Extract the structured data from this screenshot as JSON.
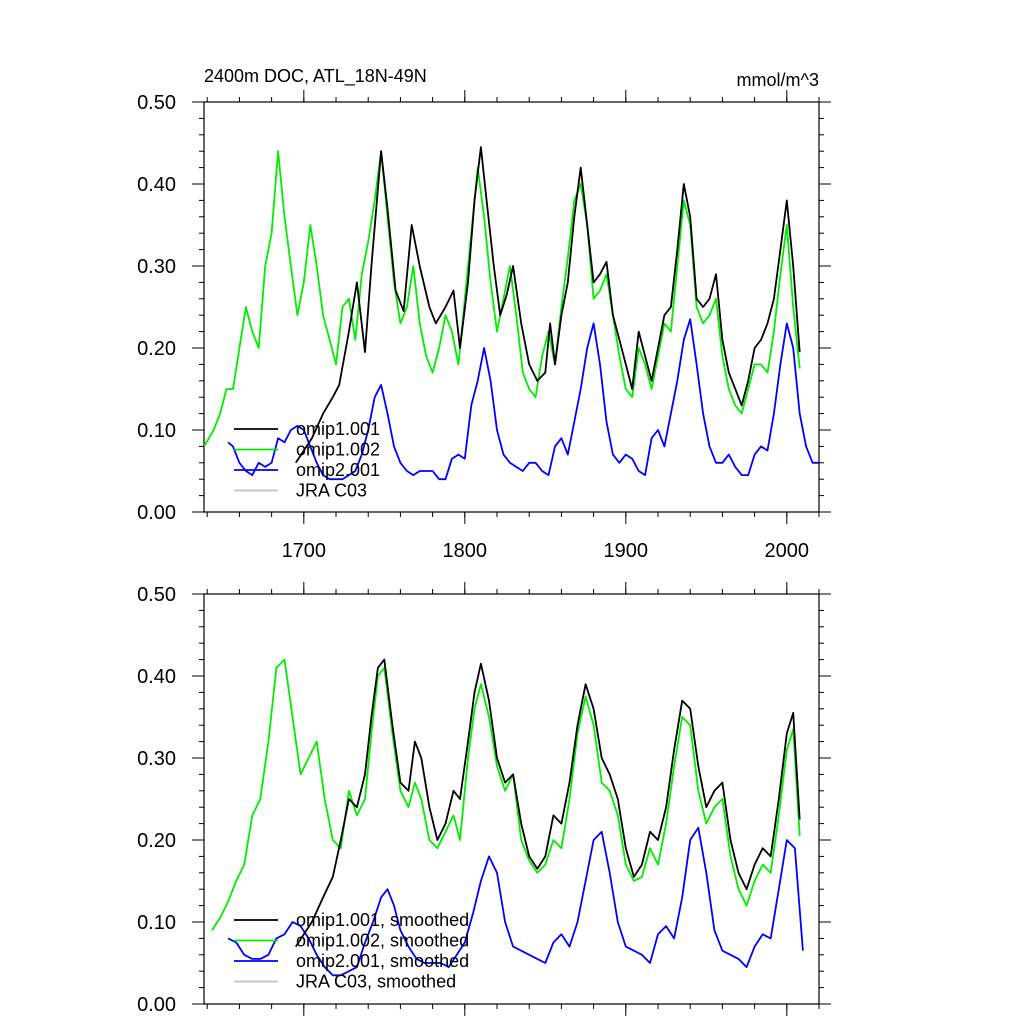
{
  "title": "2400m DOC, ATL_18N-49N",
  "units": "mmol/m^3",
  "colors": {
    "omip1_001": "#000000",
    "omip1_002": "#00ee00",
    "omip2_001": "#0000ff",
    "jra_c03": "#c0c0c0"
  },
  "chart_data": [
    {
      "type": "line",
      "panel": "top",
      "title": "2400m DOC, ATL_18N-49N",
      "units": "mmol/m^3",
      "xlim": [
        1638,
        2020
      ],
      "ylim": [
        0,
        0.5
      ],
      "xticks": [
        1700,
        1800,
        1900,
        2000
      ],
      "xtick_labels": [
        "1700",
        "1800",
        "1900",
        "2000"
      ],
      "yticks": [
        0,
        0.1,
        0.2,
        0.3,
        0.4,
        0.5
      ],
      "ytick_labels": [
        "0.00",
        "0.10",
        "0.20",
        "0.30",
        "0.40",
        "0.50"
      ],
      "legend_position": "bottom-left",
      "series": [
        {
          "name": "omip1.001",
          "color": "#000000",
          "x": [
            1695,
            1705,
            1712,
            1718,
            1722,
            1728,
            1733,
            1738,
            1742,
            1748,
            1752,
            1757,
            1762,
            1767,
            1772,
            1778,
            1782,
            1788,
            1793,
            1797,
            1802,
            1806,
            1810,
            1813,
            1818,
            1822,
            1826,
            1830,
            1835,
            1840,
            1845,
            1850,
            1853,
            1856,
            1860,
            1864,
            1868,
            1872,
            1876,
            1880,
            1884,
            1888,
            1892,
            1896,
            1900,
            1904,
            1908,
            1912,
            1916,
            1920,
            1924,
            1928,
            1932,
            1936,
            1940,
            1944,
            1948,
            1952,
            1956,
            1960,
            1964,
            1968,
            1972,
            1976,
            1980,
            1984,
            1988,
            1992,
            1996,
            2000,
            2004,
            2008
          ],
          "y": [
            0.06,
            0.09,
            0.12,
            0.14,
            0.155,
            0.22,
            0.28,
            0.195,
            0.3,
            0.44,
            0.37,
            0.27,
            0.245,
            0.35,
            0.3,
            0.25,
            0.23,
            0.25,
            0.27,
            0.2,
            0.28,
            0.38,
            0.445,
            0.39,
            0.3,
            0.24,
            0.265,
            0.3,
            0.23,
            0.18,
            0.16,
            0.17,
            0.23,
            0.18,
            0.24,
            0.28,
            0.36,
            0.42,
            0.35,
            0.28,
            0.29,
            0.305,
            0.24,
            0.21,
            0.18,
            0.15,
            0.22,
            0.19,
            0.16,
            0.2,
            0.24,
            0.25,
            0.32,
            0.4,
            0.36,
            0.26,
            0.25,
            0.26,
            0.29,
            0.21,
            0.17,
            0.15,
            0.13,
            0.16,
            0.2,
            0.21,
            0.23,
            0.26,
            0.32,
            0.38,
            0.3,
            0.195
          ]
        },
        {
          "name": "omip1.002",
          "color": "#00ee00",
          "x": [
            1638,
            1644,
            1648,
            1652,
            1656,
            1660,
            1664,
            1668,
            1672,
            1676,
            1680,
            1684,
            1688,
            1692,
            1696,
            1700,
            1704,
            1708,
            1712,
            1716,
            1720,
            1724,
            1728,
            1732,
            1736,
            1740,
            1744,
            1748,
            1752,
            1756,
            1760,
            1764,
            1768,
            1772,
            1776,
            1780,
            1784,
            1788,
            1792,
            1796,
            1800,
            1804,
            1808,
            1812,
            1816,
            1820,
            1824,
            1828,
            1832,
            1836,
            1840,
            1844,
            1848,
            1852,
            1856,
            1860,
            1864,
            1868,
            1872,
            1876,
            1880,
            1884,
            1888,
            1892,
            1896,
            1900,
            1904,
            1908,
            1912,
            1916,
            1920,
            1924,
            1928,
            1932,
            1936,
            1940,
            1944,
            1948,
            1952,
            1956,
            1960,
            1964,
            1968,
            1972,
            1976,
            1980,
            1984,
            1988,
            1992,
            1996,
            2000,
            2004,
            2008
          ],
          "y": [
            0.08,
            0.1,
            0.12,
            0.15,
            0.15,
            0.2,
            0.25,
            0.22,
            0.2,
            0.3,
            0.34,
            0.44,
            0.36,
            0.3,
            0.24,
            0.28,
            0.35,
            0.3,
            0.24,
            0.21,
            0.18,
            0.25,
            0.26,
            0.21,
            0.29,
            0.33,
            0.38,
            0.44,
            0.36,
            0.28,
            0.23,
            0.25,
            0.3,
            0.23,
            0.19,
            0.17,
            0.2,
            0.24,
            0.22,
            0.18,
            0.26,
            0.34,
            0.42,
            0.36,
            0.28,
            0.22,
            0.26,
            0.3,
            0.24,
            0.17,
            0.15,
            0.14,
            0.19,
            0.22,
            0.18,
            0.25,
            0.31,
            0.38,
            0.4,
            0.35,
            0.26,
            0.27,
            0.29,
            0.24,
            0.19,
            0.15,
            0.14,
            0.2,
            0.18,
            0.15,
            0.19,
            0.23,
            0.22,
            0.3,
            0.38,
            0.35,
            0.25,
            0.23,
            0.24,
            0.26,
            0.19,
            0.15,
            0.13,
            0.12,
            0.15,
            0.18,
            0.18,
            0.17,
            0.22,
            0.29,
            0.35,
            0.25,
            0.175
          ]
        },
        {
          "name": "omip2.001",
          "color": "#0000ff",
          "x": [
            1653,
            1656,
            1660,
            1664,
            1668,
            1672,
            1676,
            1680,
            1684,
            1688,
            1692,
            1696,
            1700,
            1704,
            1708,
            1712,
            1716,
            1720,
            1724,
            1728,
            1732,
            1736,
            1740,
            1744,
            1748,
            1752,
            1756,
            1760,
            1764,
            1768,
            1772,
            1776,
            1780,
            1784,
            1788,
            1792,
            1796,
            1800,
            1804,
            1808,
            1812,
            1816,
            1820,
            1824,
            1828,
            1832,
            1836,
            1840,
            1844,
            1848,
            1852,
            1856,
            1860,
            1864,
            1868,
            1872,
            1876,
            1880,
            1884,
            1888,
            1892,
            1896,
            1900,
            1904,
            1908,
            1912,
            1916,
            1920,
            1924,
            1928,
            1932,
            1936,
            1940,
            1944,
            1948,
            1952,
            1956,
            1960,
            1964,
            1968,
            1972,
            1976,
            1980,
            1984,
            1988,
            1992,
            1996,
            2000,
            2004,
            2008,
            2012,
            2016,
            2020
          ],
          "y": [
            0.085,
            0.08,
            0.06,
            0.05,
            0.045,
            0.06,
            0.055,
            0.06,
            0.09,
            0.085,
            0.1,
            0.105,
            0.1,
            0.08,
            0.06,
            0.045,
            0.04,
            0.04,
            0.04,
            0.045,
            0.05,
            0.07,
            0.1,
            0.14,
            0.155,
            0.12,
            0.08,
            0.06,
            0.05,
            0.045,
            0.05,
            0.05,
            0.05,
            0.04,
            0.04,
            0.065,
            0.07,
            0.065,
            0.13,
            0.16,
            0.2,
            0.16,
            0.1,
            0.07,
            0.06,
            0.055,
            0.05,
            0.06,
            0.06,
            0.05,
            0.045,
            0.08,
            0.09,
            0.07,
            0.11,
            0.15,
            0.2,
            0.23,
            0.18,
            0.11,
            0.07,
            0.06,
            0.07,
            0.065,
            0.05,
            0.045,
            0.09,
            0.1,
            0.08,
            0.12,
            0.16,
            0.21,
            0.235,
            0.18,
            0.12,
            0.08,
            0.06,
            0.06,
            0.07,
            0.055,
            0.045,
            0.045,
            0.07,
            0.08,
            0.075,
            0.12,
            0.18,
            0.23,
            0.2,
            0.12,
            0.08,
            0.06,
            0.06
          ]
        },
        {
          "name": "JRA C03",
          "color": "#c0c0c0",
          "x": [],
          "y": []
        }
      ]
    },
    {
      "type": "line",
      "panel": "bottom",
      "xlim": [
        1638,
        2020
      ],
      "ylim": [
        0,
        0.5
      ],
      "xticks": [
        1700,
        1800,
        1900,
        2000
      ],
      "yticks": [
        0,
        0.1,
        0.2,
        0.3,
        0.4,
        0.5
      ],
      "ytick_labels": [
        "0.00",
        "0.10",
        "0.20",
        "0.30",
        "0.40",
        "0.50"
      ],
      "legend_position": "bottom-left",
      "series": [
        {
          "name": "omip1.001, smoothed",
          "color": "#000000",
          "x": [
            1695,
            1705,
            1712,
            1718,
            1723,
            1728,
            1733,
            1738,
            1742,
            1746,
            1750,
            1755,
            1760,
            1765,
            1769,
            1773,
            1778,
            1783,
            1788,
            1793,
            1797,
            1802,
            1806,
            1810,
            1815,
            1820,
            1825,
            1830,
            1835,
            1840,
            1845,
            1850,
            1855,
            1860,
            1865,
            1870,
            1875,
            1880,
            1885,
            1890,
            1895,
            1900,
            1905,
            1910,
            1915,
            1920,
            1925,
            1930,
            1935,
            1940,
            1945,
            1950,
            1955,
            1960,
            1965,
            1970,
            1975,
            1980,
            1985,
            1990,
            1995,
            2000,
            2004,
            2008
          ],
          "y": [
            0.07,
            0.1,
            0.13,
            0.155,
            0.2,
            0.25,
            0.24,
            0.28,
            0.35,
            0.41,
            0.42,
            0.34,
            0.27,
            0.26,
            0.32,
            0.3,
            0.24,
            0.2,
            0.22,
            0.26,
            0.25,
            0.32,
            0.38,
            0.415,
            0.37,
            0.3,
            0.27,
            0.28,
            0.22,
            0.18,
            0.165,
            0.18,
            0.23,
            0.22,
            0.27,
            0.34,
            0.39,
            0.36,
            0.3,
            0.28,
            0.25,
            0.19,
            0.155,
            0.17,
            0.21,
            0.2,
            0.24,
            0.31,
            0.37,
            0.36,
            0.29,
            0.24,
            0.26,
            0.27,
            0.2,
            0.16,
            0.14,
            0.17,
            0.19,
            0.18,
            0.25,
            0.33,
            0.355,
            0.225
          ]
        },
        {
          "name": "omip1.002, smoothed",
          "color": "#00ee00",
          "x": [
            1643,
            1648,
            1653,
            1658,
            1663,
            1668,
            1673,
            1678,
            1683,
            1688,
            1693,
            1698,
            1703,
            1708,
            1713,
            1718,
            1723,
            1728,
            1733,
            1738,
            1742,
            1746,
            1750,
            1755,
            1760,
            1765,
            1769,
            1773,
            1778,
            1783,
            1788,
            1793,
            1797,
            1802,
            1806,
            1810,
            1815,
            1820,
            1825,
            1830,
            1835,
            1840,
            1845,
            1850,
            1855,
            1860,
            1865,
            1870,
            1875,
            1880,
            1885,
            1890,
            1895,
            1900,
            1905,
            1910,
            1915,
            1920,
            1925,
            1930,
            1935,
            1940,
            1945,
            1950,
            1955,
            1960,
            1965,
            1970,
            1975,
            1980,
            1985,
            1990,
            1995,
            2000,
            2004,
            2008
          ],
          "y": [
            0.09,
            0.105,
            0.125,
            0.15,
            0.17,
            0.23,
            0.25,
            0.32,
            0.41,
            0.42,
            0.35,
            0.28,
            0.3,
            0.32,
            0.25,
            0.2,
            0.19,
            0.26,
            0.23,
            0.25,
            0.33,
            0.4,
            0.41,
            0.33,
            0.26,
            0.24,
            0.27,
            0.25,
            0.2,
            0.19,
            0.21,
            0.23,
            0.2,
            0.3,
            0.36,
            0.39,
            0.35,
            0.29,
            0.26,
            0.28,
            0.2,
            0.175,
            0.16,
            0.17,
            0.2,
            0.19,
            0.25,
            0.33,
            0.375,
            0.34,
            0.27,
            0.26,
            0.23,
            0.17,
            0.15,
            0.155,
            0.19,
            0.17,
            0.22,
            0.29,
            0.35,
            0.34,
            0.26,
            0.22,
            0.24,
            0.25,
            0.18,
            0.14,
            0.12,
            0.15,
            0.17,
            0.16,
            0.23,
            0.31,
            0.335,
            0.205
          ]
        },
        {
          "name": "omip2.001, smoothed",
          "color": "#0000ff",
          "x": [
            1653,
            1658,
            1663,
            1668,
            1673,
            1678,
            1683,
            1688,
            1693,
            1698,
            1703,
            1708,
            1713,
            1718,
            1723,
            1728,
            1733,
            1738,
            1743,
            1748,
            1752,
            1756,
            1760,
            1765,
            1770,
            1775,
            1780,
            1785,
            1790,
            1795,
            1800,
            1805,
            1810,
            1815,
            1820,
            1825,
            1830,
            1835,
            1840,
            1845,
            1850,
            1855,
            1860,
            1865,
            1870,
            1875,
            1880,
            1885,
            1890,
            1895,
            1900,
            1905,
            1910,
            1915,
            1920,
            1925,
            1930,
            1935,
            1940,
            1945,
            1950,
            1955,
            1960,
            1965,
            1970,
            1975,
            1980,
            1985,
            1990,
            1995,
            2000,
            2005,
            2010
          ],
          "y": [
            0.08,
            0.075,
            0.06,
            0.055,
            0.055,
            0.06,
            0.08,
            0.085,
            0.1,
            0.095,
            0.08,
            0.06,
            0.045,
            0.035,
            0.035,
            0.04,
            0.045,
            0.075,
            0.1,
            0.13,
            0.14,
            0.12,
            0.09,
            0.07,
            0.055,
            0.05,
            0.05,
            0.05,
            0.045,
            0.06,
            0.075,
            0.11,
            0.15,
            0.18,
            0.16,
            0.1,
            0.07,
            0.065,
            0.06,
            0.055,
            0.05,
            0.075,
            0.085,
            0.07,
            0.1,
            0.15,
            0.2,
            0.21,
            0.16,
            0.1,
            0.07,
            0.065,
            0.06,
            0.05,
            0.085,
            0.095,
            0.08,
            0.13,
            0.2,
            0.215,
            0.16,
            0.09,
            0.065,
            0.06,
            0.055,
            0.045,
            0.07,
            0.085,
            0.08,
            0.14,
            0.2,
            0.19,
            0.065
          ]
        },
        {
          "name": "JRA C03, smoothed",
          "color": "#c0c0c0",
          "x": [],
          "y": []
        }
      ]
    }
  ]
}
